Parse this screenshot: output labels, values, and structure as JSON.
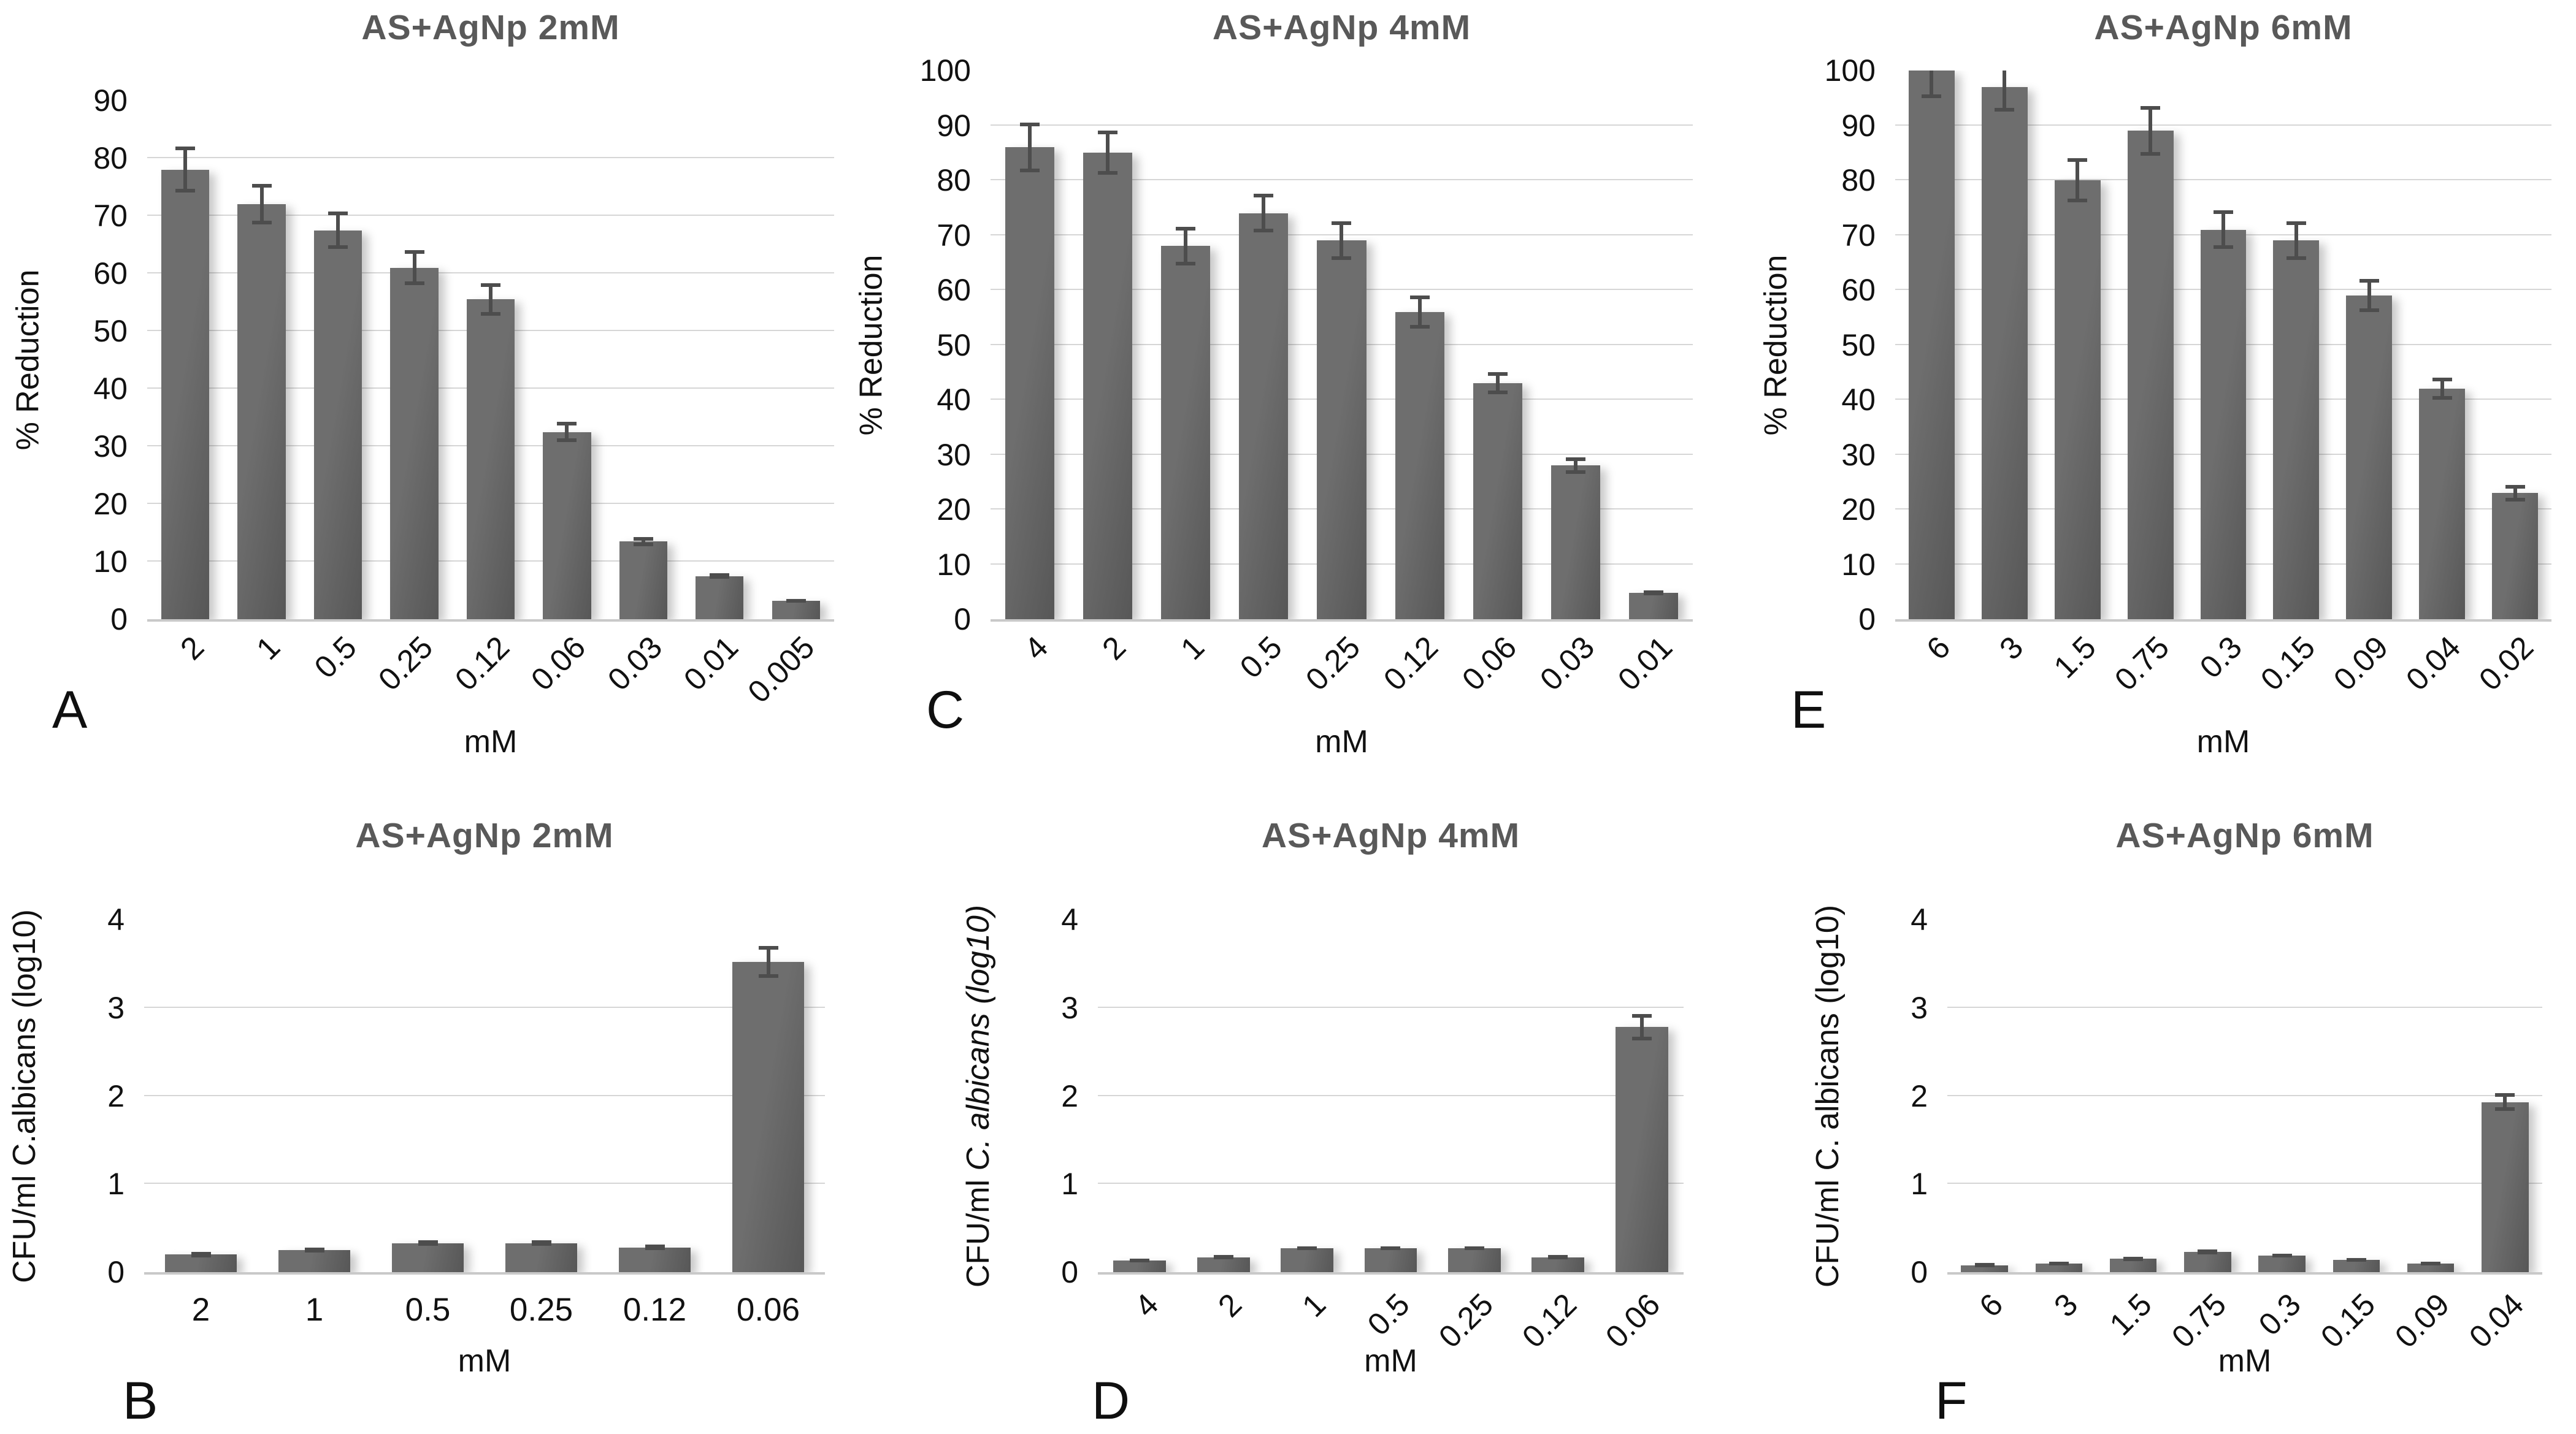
{
  "figure": {
    "x_axis_title": "mM",
    "panel_letters": [
      "A",
      "B",
      "C",
      "D",
      "E",
      "F"
    ]
  },
  "colors": {
    "background": "#ffffff",
    "title": "#595959",
    "bar_light": "#6e6e6e",
    "bar_dark": "#575757",
    "grid": "#d6d6d6",
    "axis_line": "#c9c9c9",
    "error_bar": "#4d4d4d",
    "text": "#1c1c1c"
  },
  "chart_data": [
    {
      "type": "bar",
      "panel_letter": "A",
      "title": "AS+AgNp 2mM",
      "ylabel": "% Reduction",
      "ylabel_italic": "",
      "xlabel": "mM",
      "ymax": 90,
      "ytick_step": 10,
      "grid": true,
      "rotated_xticks": true,
      "categories": [
        "2",
        "1",
        "0.5",
        "0.25",
        "0.12",
        "0.06",
        "0.03",
        "0.01",
        "0.005"
      ],
      "values": [
        78,
        72,
        67.5,
        61,
        55.5,
        32.5,
        13.5,
        7.5,
        3.2
      ],
      "errors": [
        4,
        3.5,
        3.2,
        3,
        2.8,
        1.8,
        0.8,
        0.5,
        0.3
      ]
    },
    {
      "type": "bar",
      "panel_letter": "C",
      "title": "AS+AgNp 4mM",
      "ylabel": "% Reduction",
      "ylabel_italic": "",
      "xlabel": "mM",
      "ymax": 100,
      "ytick_step": 10,
      "grid": true,
      "rotated_xticks": true,
      "categories": [
        "4",
        "2",
        "1",
        "0.5",
        "0.25",
        "0.12",
        "0.06",
        "0.03",
        "0.01"
      ],
      "values": [
        86,
        85,
        68,
        74,
        69,
        56,
        43,
        28,
        4.8
      ],
      "errors": [
        4.5,
        4,
        3.5,
        3.5,
        3.5,
        3,
        2,
        1.5,
        0.4
      ]
    },
    {
      "type": "bar",
      "panel_letter": "E",
      "title": "AS+AgNp 6mM",
      "ylabel": "% Reduction",
      "ylabel_italic": "",
      "xlabel": "mM",
      "ymax": 100,
      "ytick_step": 10,
      "grid": true,
      "rotated_xticks": true,
      "categories": [
        "6",
        "3",
        "1.5",
        "0.75",
        "0.3",
        "0.15",
        "0.09",
        "0.04",
        "0.02"
      ],
      "values": [
        100,
        97,
        80,
        89,
        71,
        69,
        59,
        42,
        23
      ],
      "errors": [
        5,
        4.5,
        4,
        4.5,
        3.5,
        3.5,
        3,
        2,
        1.5
      ]
    },
    {
      "type": "bar",
      "panel_letter": "B",
      "title": "AS+AgNp 2mM",
      "ylabel": "CFU/ml C.albicans (log10)",
      "ylabel_italic": "",
      "xlabel": "mM",
      "ymax": 4,
      "ytick_step": 1,
      "grid": true,
      "rotated_xticks": false,
      "categories": [
        "2",
        "1",
        "0.5",
        "0.25",
        "0.12",
        "0.06"
      ],
      "values": [
        0.2,
        0.25,
        0.33,
        0.33,
        0.28,
        3.52
      ],
      "errors": [
        0.03,
        0.03,
        0.03,
        0.03,
        0.03,
        0.18
      ]
    },
    {
      "type": "bar",
      "panel_letter": "D",
      "title": "AS+AgNp 4mM",
      "ylabel": "CFU/ml ",
      "ylabel_italic": "C. albicans (log10)",
      "xlabel": "mM",
      "ymax": 4,
      "ytick_step": 1,
      "grid": true,
      "rotated_xticks": true,
      "categories": [
        "4",
        "2",
        "1",
        "0.5",
        "0.25",
        "0.12",
        "0.06"
      ],
      "values": [
        0.13,
        0.17,
        0.27,
        0.27,
        0.27,
        0.17,
        2.78
      ],
      "errors": [
        0.02,
        0.02,
        0.02,
        0.02,
        0.02,
        0.02,
        0.15
      ]
    },
    {
      "type": "bar",
      "panel_letter": "F",
      "title": "AS+AgNp 6mM",
      "ylabel": "CFU/ml C. albicans (log10)",
      "ylabel_italic": "",
      "xlabel": "mM",
      "ymax": 4,
      "ytick_step": 1,
      "grid": true,
      "rotated_xticks": true,
      "categories": [
        "6",
        "3",
        "1.5",
        "0.75",
        "0.3",
        "0.15",
        "0.09",
        "0.04"
      ],
      "values": [
        0.08,
        0.1,
        0.15,
        0.23,
        0.19,
        0.14,
        0.1,
        1.93
      ],
      "errors": [
        0.02,
        0.02,
        0.02,
        0.03,
        0.02,
        0.02,
        0.02,
        0.1
      ]
    }
  ]
}
